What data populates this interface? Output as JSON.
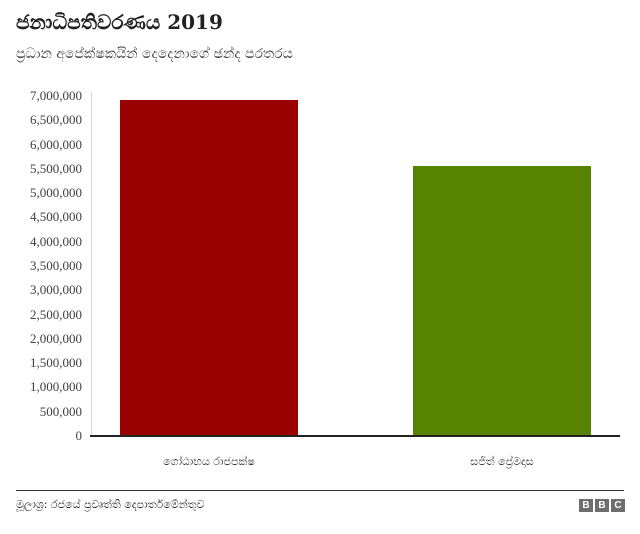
{
  "header": {
    "title": "ජනාධිපතිවරණය 2019",
    "subtitle": "ප්‍රධාන අපේක්ෂකයින් දෙදෙනාගේ ඡන්ද පරතරය"
  },
  "footer": {
    "source": "මූලාශ්‍ර: රජයේ ප්‍රවෘත්ති දෙපාර්තමේන්තුව",
    "logo_letters": [
      "B",
      "B",
      "C"
    ]
  },
  "colors": {
    "bar_1": "#990000",
    "bar_2": "#588300",
    "axis": "#222222",
    "grid_axis": "#d6d6d6",
    "logo_bg": "#6e6e6e"
  },
  "chart_data": {
    "type": "bar",
    "title": "ජනාධිපතිවරණය 2019",
    "subtitle": "ප්‍රධාන අපේක්ෂකයින් දෙදෙනාගේ ඡන්ද පරතරය",
    "categories": [
      "ගෝඨාභය රාජපක්ෂ",
      "සජිත් ප්‍රේමදාස"
    ],
    "values": [
      6924255,
      5564239
    ],
    "colors": [
      "#990000",
      "#588300"
    ],
    "xlabel": "",
    "ylabel": "",
    "ylim": [
      0,
      7000000
    ],
    "yticks": [
      0,
      500000,
      1000000,
      1500000,
      2000000,
      2500000,
      3000000,
      3500000,
      4000000,
      4500000,
      5000000,
      5500000,
      6000000,
      6500000,
      7000000
    ],
    "ytick_labels": [
      "0",
      "500,000",
      "1,000,000",
      "1,500,000",
      "2,000,000",
      "2,500,000",
      "3,000,000",
      "3,500,000",
      "4,000,000",
      "4,500,000",
      "5,000,000",
      "5,500,000",
      "6,000,000",
      "6,500,000",
      "7,000,000"
    ],
    "grid": false,
    "legend": "none",
    "source": "මූලාශ්‍ර: රජයේ ප්‍රවෘත්ති දෙපාර්තමේන්තුව"
  }
}
